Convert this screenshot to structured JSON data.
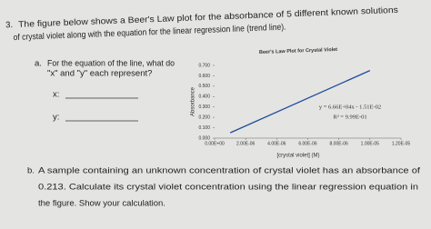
{
  "question": {
    "number": "3.",
    "lines": [
      "The figure below shows a Beer's Law plot for the absorbance of 5 different known solutions",
      "of crystal violet along with the equation for the linear regression line (trend line)."
    ]
  },
  "part_a": {
    "label": "a.",
    "lines": [
      "For the equation of the line, what do",
      "\"x\" and \"y\" each represent?"
    ],
    "x_label": "x:",
    "y_label": "y:"
  },
  "part_b": {
    "label": "b.",
    "lines": [
      "A sample containing an unknown concentration of crystal violet has an absorbance of",
      "0.213. Calculate its crystal violet concentration using the linear regression equation in",
      "the figure. Show your calculation."
    ]
  },
  "chart_data": {
    "type": "line",
    "title": "Beer's Law Plot for Crystal Violet",
    "x_label": "[crystal violet] (M)",
    "y_label": "Absorbance",
    "x": [
      1e-06,
      1e-05
    ],
    "series": [
      {
        "color": "#1f4e9a",
        "values": [
          0.051,
          0.651
        ]
      }
    ],
    "annotations": [
      "y = 6.66E+04x - 1.51E-02",
      "R² = 9.99E-01"
    ],
    "xlim": [
      0,
      1.2e-05
    ],
    "ylim": [
      0,
      0.7
    ],
    "xticks": [
      {
        "value": 0,
        "label": "0.00E+00"
      },
      {
        "value": 2e-06,
        "label": "2.00E-06"
      },
      {
        "value": 4e-06,
        "label": "4.00E-06"
      },
      {
        "value": 6e-06,
        "label": "6.00E-06"
      },
      {
        "value": 8e-06,
        "label": "8.00E-06"
      },
      {
        "value": 1e-05,
        "label": "1.00E-05"
      },
      {
        "value": 1.2e-05,
        "label": "1.20E-05"
      }
    ],
    "yticks": [
      {
        "value": 0,
        "label": "0.000"
      },
      {
        "value": 0.1,
        "label": "0.100"
      },
      {
        "value": 0.2,
        "label": "0.200"
      },
      {
        "value": 0.3,
        "label": "0.300"
      },
      {
        "value": 0.4,
        "label": "0.400"
      },
      {
        "value": 0.5,
        "label": "0.500"
      },
      {
        "value": 0.6,
        "label": "0.600"
      },
      {
        "value": 0.7,
        "label": "0.700"
      }
    ]
  }
}
